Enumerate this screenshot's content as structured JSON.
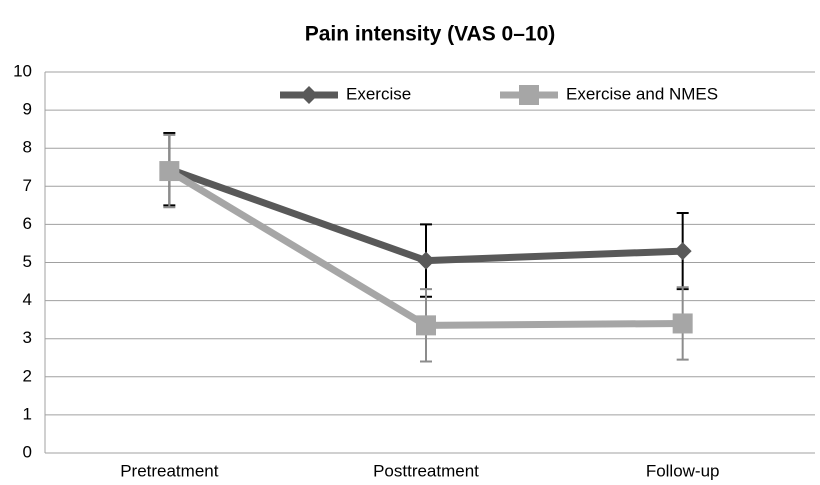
{
  "chart_data": {
    "type": "line",
    "title": "Pain intensity (VAS 0–10)",
    "categories": [
      "Pretreatment",
      "Posttreatment",
      "Follow-up"
    ],
    "series": [
      {
        "name": "Exercise",
        "color": "#595959",
        "marker": "diamond",
        "error_color": "#000000",
        "values": [
          7.45,
          5.05,
          5.3
        ],
        "errors": [
          0.95,
          0.95,
          1.0
        ]
      },
      {
        "name": "Exercise and NMES",
        "color": "#a6a6a6",
        "marker": "square",
        "error_color": "#8c8c8c",
        "values": [
          7.4,
          3.35,
          3.4
        ],
        "errors": [
          0.95,
          0.95,
          0.95
        ]
      }
    ],
    "ylim": [
      0,
      10
    ],
    "yticks": [
      0,
      1,
      2,
      3,
      4,
      5,
      6,
      7,
      8,
      9,
      10
    ],
    "grid": true,
    "legend": "top"
  }
}
